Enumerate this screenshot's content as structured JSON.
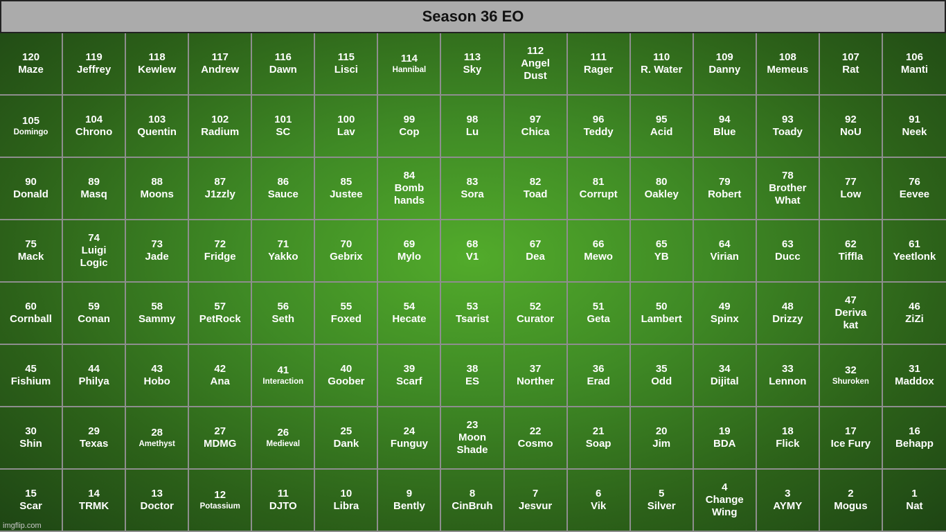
{
  "title": "Season 36 EO",
  "watermark": "imgflip.com",
  "cells": [
    {
      "n": "120",
      "name": "Maze"
    },
    {
      "n": "119",
      "name": "Jeffrey"
    },
    {
      "n": "118",
      "name": "Kewlew"
    },
    {
      "n": "117",
      "name": "Andrew"
    },
    {
      "n": "116",
      "name": "Dawn"
    },
    {
      "n": "115",
      "name": "Lisci"
    },
    {
      "n": "114",
      "name": "Hannibal",
      "small": true
    },
    {
      "n": "113",
      "name": "Sky"
    },
    {
      "n": "112",
      "name": "Angel\nDust"
    },
    {
      "n": "111",
      "name": "Rager"
    },
    {
      "n": "110",
      "name": "R. Water"
    },
    {
      "n": "109",
      "name": "Danny"
    },
    {
      "n": "108",
      "name": "Memeus"
    },
    {
      "n": "107",
      "name": "Rat"
    },
    {
      "n": "106",
      "name": "Manti"
    },
    {
      "n": "105",
      "name": "Domingo",
      "small": true
    },
    {
      "n": "104",
      "name": "Chrono"
    },
    {
      "n": "103",
      "name": "Quentin"
    },
    {
      "n": "102",
      "name": "Radium"
    },
    {
      "n": "101",
      "name": "SC"
    },
    {
      "n": "100",
      "name": "Lav"
    },
    {
      "n": "99",
      "name": "Cop"
    },
    {
      "n": "98",
      "name": "Lu"
    },
    {
      "n": "97",
      "name": "Chica"
    },
    {
      "n": "96",
      "name": "Teddy"
    },
    {
      "n": "95",
      "name": "Acid"
    },
    {
      "n": "94",
      "name": "Blue"
    },
    {
      "n": "93",
      "name": "Toady"
    },
    {
      "n": "92",
      "name": "NoU"
    },
    {
      "n": "91",
      "name": "Neek"
    },
    {
      "n": "90",
      "name": "Donald"
    },
    {
      "n": "89",
      "name": "Masq"
    },
    {
      "n": "88",
      "name": "Moons"
    },
    {
      "n": "87",
      "name": "J1zzly"
    },
    {
      "n": "86",
      "name": "Sauce"
    },
    {
      "n": "85",
      "name": "Justee"
    },
    {
      "n": "84",
      "name": "Bomb\nhands"
    },
    {
      "n": "83",
      "name": "Sora"
    },
    {
      "n": "82",
      "name": "Toad"
    },
    {
      "n": "81",
      "name": "Corrupt"
    },
    {
      "n": "80",
      "name": "Oakley"
    },
    {
      "n": "79",
      "name": "Robert"
    },
    {
      "n": "78",
      "name": "Brother\nWhat"
    },
    {
      "n": "77",
      "name": "Low"
    },
    {
      "n": "76",
      "name": "Eevee"
    },
    {
      "n": "75",
      "name": "Mack"
    },
    {
      "n": "74",
      "name": "Luigi\nLogic"
    },
    {
      "n": "73",
      "name": "Jade"
    },
    {
      "n": "72",
      "name": "Fridge"
    },
    {
      "n": "71",
      "name": "Yakko"
    },
    {
      "n": "70",
      "name": "Gebrix"
    },
    {
      "n": "69",
      "name": "Mylo"
    },
    {
      "n": "68",
      "name": "V1"
    },
    {
      "n": "67",
      "name": "Dea"
    },
    {
      "n": "66",
      "name": "Mewo"
    },
    {
      "n": "65",
      "name": "YB"
    },
    {
      "n": "64",
      "name": "Virian"
    },
    {
      "n": "63",
      "name": "Ducc"
    },
    {
      "n": "62",
      "name": "Tiffla"
    },
    {
      "n": "61",
      "name": "Yeetlonk"
    },
    {
      "n": "60",
      "name": "Cornball"
    },
    {
      "n": "59",
      "name": "Conan"
    },
    {
      "n": "58",
      "name": "Sammy"
    },
    {
      "n": "57",
      "name": "PetRock"
    },
    {
      "n": "56",
      "name": "Seth"
    },
    {
      "n": "55",
      "name": "Foxed"
    },
    {
      "n": "54",
      "name": "Hecate"
    },
    {
      "n": "53",
      "name": "Tsarist"
    },
    {
      "n": "52",
      "name": "Curator"
    },
    {
      "n": "51",
      "name": "Geta"
    },
    {
      "n": "50",
      "name": "Lambert"
    },
    {
      "n": "49",
      "name": "Spinx"
    },
    {
      "n": "48",
      "name": "Drizzy"
    },
    {
      "n": "47",
      "name": "Deriva\nkat"
    },
    {
      "n": "46",
      "name": "ZiZi"
    },
    {
      "n": "45",
      "name": "Fishium"
    },
    {
      "n": "44",
      "name": "Philya"
    },
    {
      "n": "43",
      "name": "Hobo"
    },
    {
      "n": "42",
      "name": "Ana"
    },
    {
      "n": "41",
      "name": "Interaction",
      "small": true
    },
    {
      "n": "40",
      "name": "Goober"
    },
    {
      "n": "39",
      "name": "Scarf"
    },
    {
      "n": "38",
      "name": "ES"
    },
    {
      "n": "37",
      "name": "Norther"
    },
    {
      "n": "36",
      "name": "Erad"
    },
    {
      "n": "35",
      "name": "Odd"
    },
    {
      "n": "34",
      "name": "Dijital"
    },
    {
      "n": "33",
      "name": "Lennon"
    },
    {
      "n": "32",
      "name": "Shuroken",
      "small": true
    },
    {
      "n": "31",
      "name": "Maddox"
    },
    {
      "n": "30",
      "name": "Shin"
    },
    {
      "n": "29",
      "name": "Texas"
    },
    {
      "n": "28",
      "name": "Amethyst",
      "small": true
    },
    {
      "n": "27",
      "name": "MDMG"
    },
    {
      "n": "26",
      "name": "Medieval",
      "small": true
    },
    {
      "n": "25",
      "name": "Dank"
    },
    {
      "n": "24",
      "name": "Funguy"
    },
    {
      "n": "23",
      "name": "Moon\nShade"
    },
    {
      "n": "22",
      "name": "Cosmo"
    },
    {
      "n": "21",
      "name": "Soap"
    },
    {
      "n": "20",
      "name": "Jim"
    },
    {
      "n": "19",
      "name": "BDA"
    },
    {
      "n": "18",
      "name": "Flick"
    },
    {
      "n": "17",
      "name": "Ice Fury"
    },
    {
      "n": "16",
      "name": "Behapp"
    },
    {
      "n": "15",
      "name": "Scar"
    },
    {
      "n": "14",
      "name": "TRMK"
    },
    {
      "n": "13",
      "name": "Doctor"
    },
    {
      "n": "12",
      "name": "Potassium",
      "small": true
    },
    {
      "n": "11",
      "name": "DJTO"
    },
    {
      "n": "10",
      "name": "Libra"
    },
    {
      "n": "9",
      "name": "Bently"
    },
    {
      "n": "8",
      "name": "CinBruh"
    },
    {
      "n": "7",
      "name": "Jesvur"
    },
    {
      "n": "6",
      "name": "Vik"
    },
    {
      "n": "5",
      "name": "Silver"
    },
    {
      "n": "4",
      "name": "Change\nWing"
    },
    {
      "n": "3",
      "name": "AYMY"
    },
    {
      "n": "2",
      "name": "Mogus"
    },
    {
      "n": "1",
      "name": "Nat"
    }
  ]
}
